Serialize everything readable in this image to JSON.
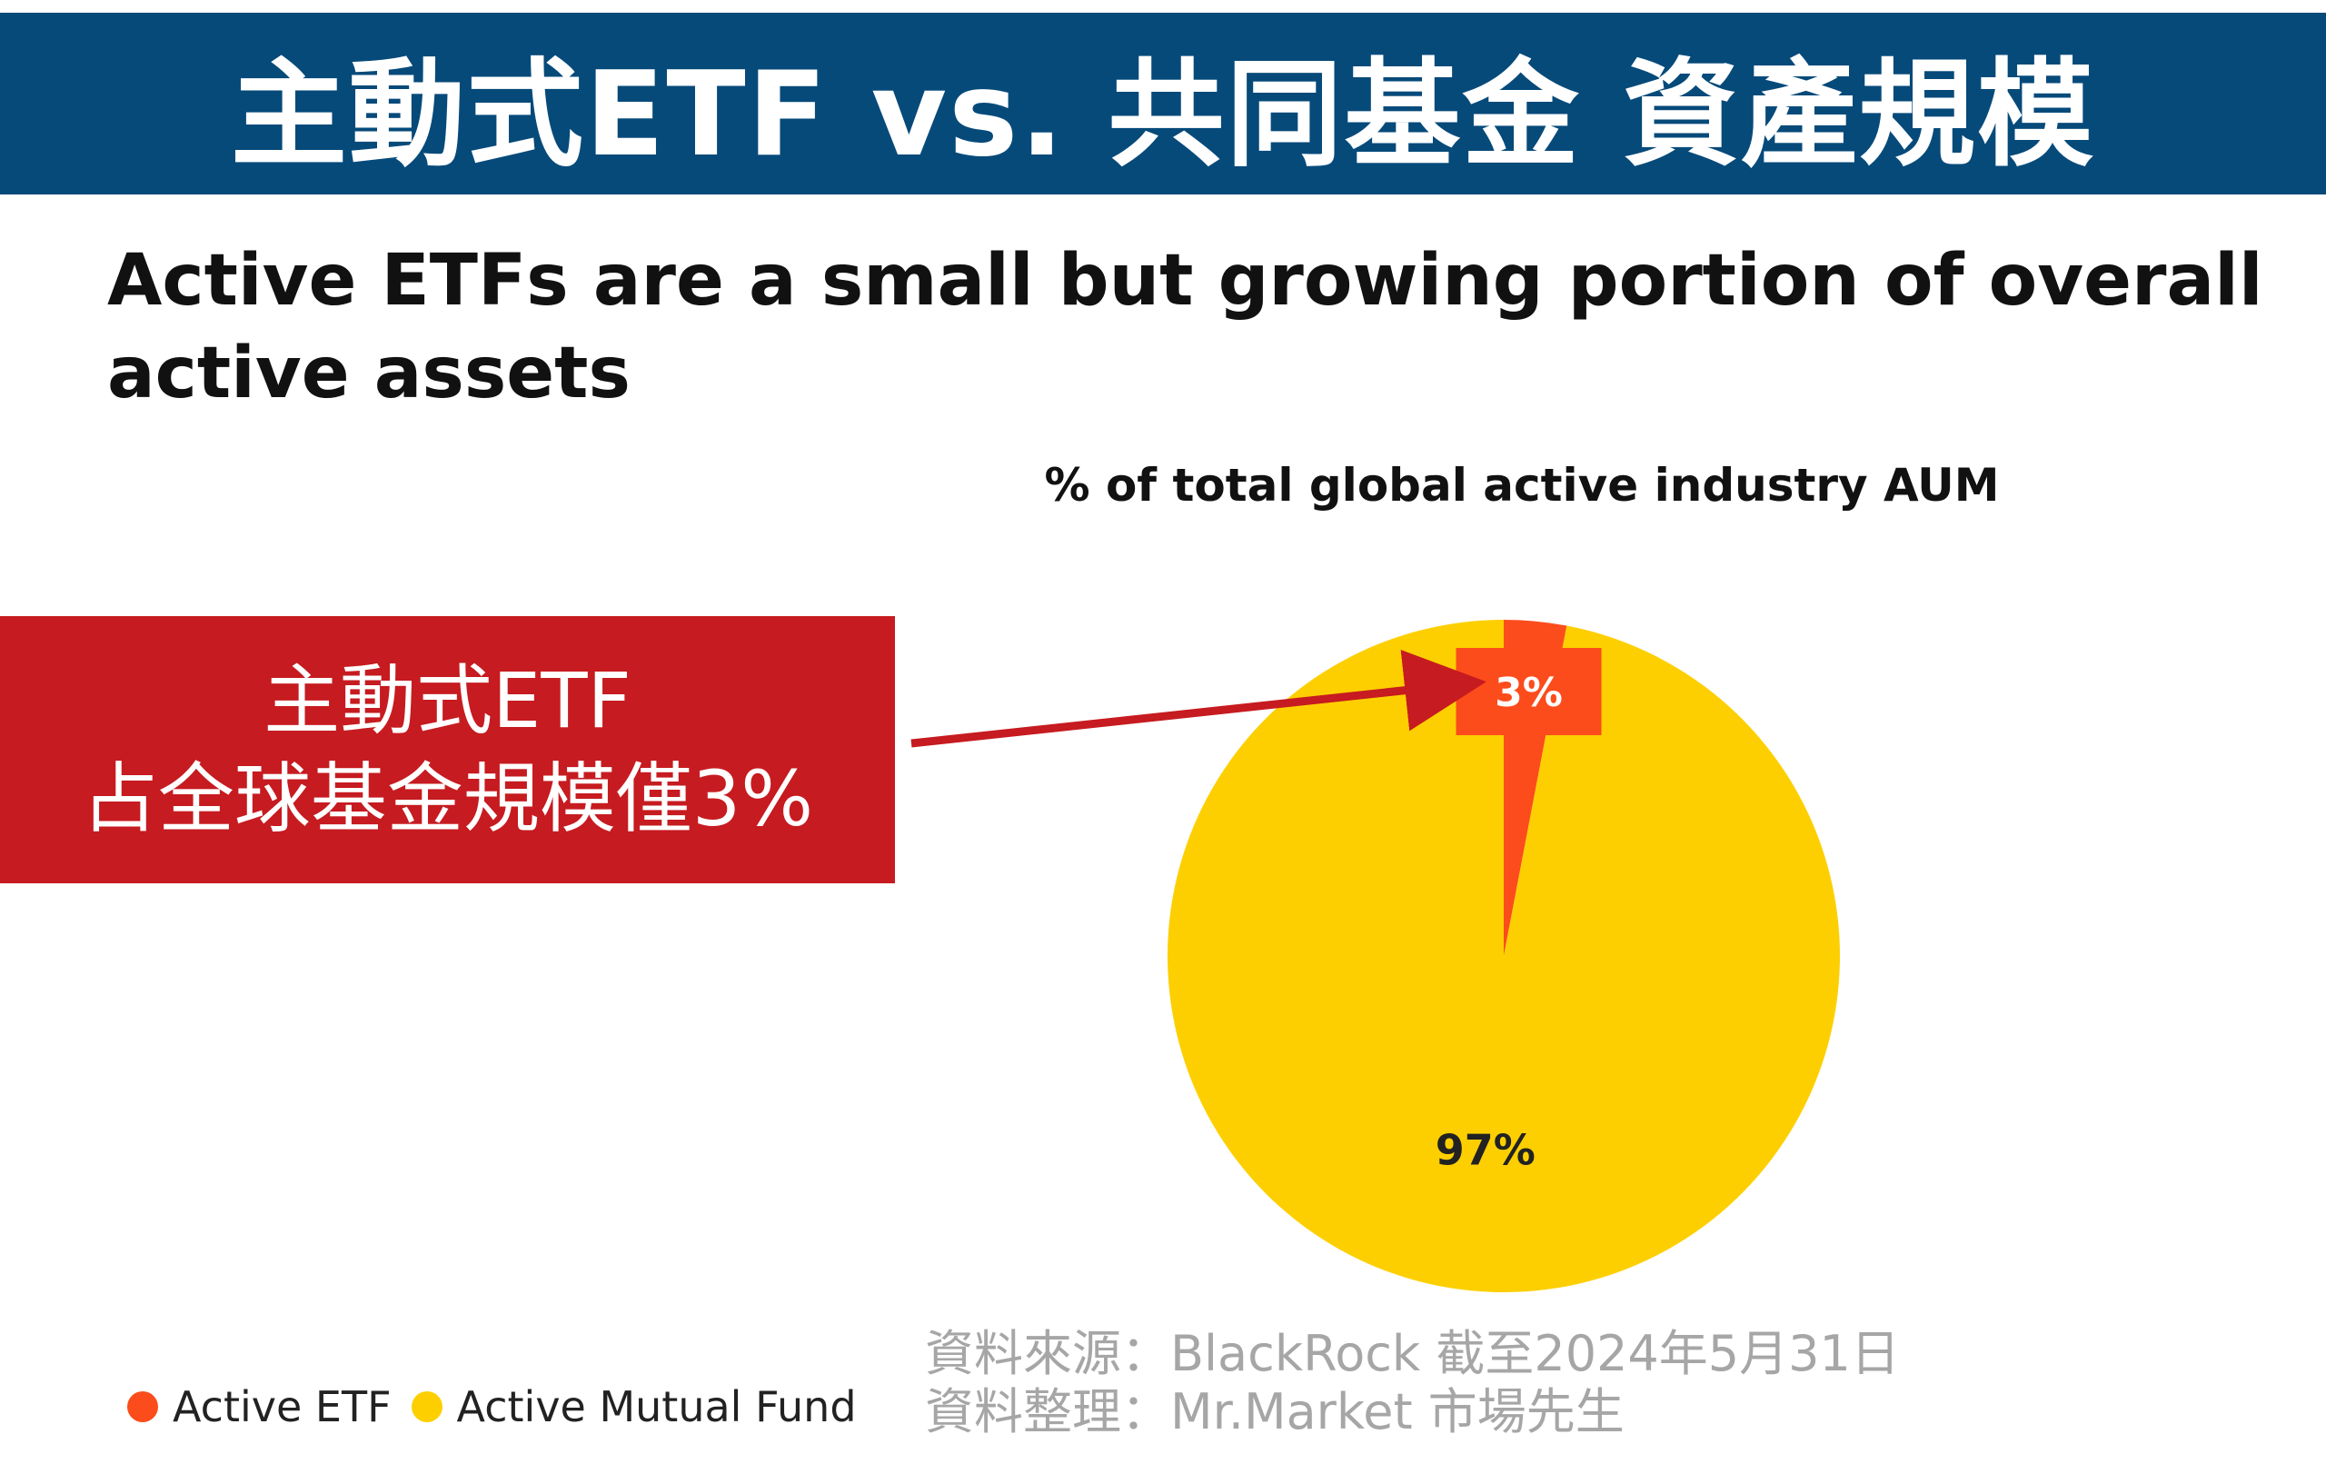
{
  "banner": {
    "title": "主動式ETF vs. 共同基金 資產規模"
  },
  "headline": {
    "line1": "Active ETFs are a small but growing portion of overall",
    "line2": "active assets"
  },
  "callout": {
    "line1": "主動式ETF",
    "line2": "占全球基金規模僅3%",
    "color": "#c61b20"
  },
  "legend": {
    "items": [
      {
        "label": "Active ETF",
        "color": "#fc4c1c"
      },
      {
        "label": "Active Mutual Fund",
        "color": "#fdcf00"
      }
    ]
  },
  "source": {
    "line1": "資料來源：BlackRock 截至2024年5月31日",
    "line2": "資料整理：Mr.Market 市場先生"
  },
  "chart_data": {
    "type": "pie",
    "title": "% of total global active industry AUM",
    "labels": [
      "Active ETF",
      "Active Mutual Fund"
    ],
    "values": [
      3,
      97
    ],
    "data_labels": [
      "3%",
      "97%"
    ],
    "colors": [
      "#fc4c1c",
      "#fdcf00"
    ],
    "legend_position": "bottom-left"
  }
}
